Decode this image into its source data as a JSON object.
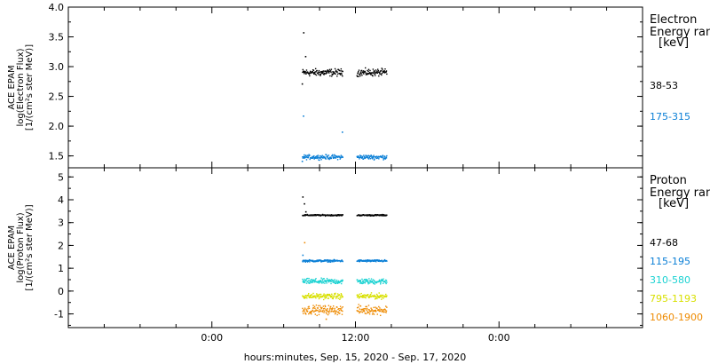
{
  "chart_data": {
    "type": "scatter",
    "x_axis": {
      "label": "hours:minutes, Sep. 15, 2020 - Sep. 17, 2020",
      "range_hours": [
        -12,
        36
      ],
      "ticks": [
        {
          "hour": 0,
          "label": "0:00"
        },
        {
          "hour": 12,
          "label": "12:00"
        },
        {
          "hour": 24,
          "label": "0:00"
        }
      ]
    },
    "panels": [
      {
        "id": "electron",
        "ylabel": [
          "ACE EPAM",
          "log(Electron Flux)",
          "[1/(cm²s ster MeV)]"
        ],
        "ylim": [
          1.3,
          4.0
        ],
        "yticks": [
          "1.5",
          "2.0",
          "2.5",
          "3.0",
          "3.5",
          "4.0"
        ],
        "legend_title": [
          "Electron",
          "Energy range",
          "[keV]"
        ],
        "gaps_hours": [
          [
            -12,
            7.5
          ],
          [
            10.9,
            12.0
          ],
          [
            14.6,
            36
          ]
        ],
        "series": [
          {
            "name": "38-53",
            "color": "#000000",
            "level": 2.91,
            "scatter": 0.04,
            "spikes": [
              {
                "hour": 7.5,
                "value": 2.72
              },
              {
                "hour": 7.62,
                "value": 3.58
              },
              {
                "hour": 7.78,
                "value": 3.18
              }
            ]
          },
          {
            "name": "175-315",
            "color": "#0a7fd6",
            "level": 1.49,
            "scatter": 0.025,
            "spikes": [
              {
                "hour": 7.5,
                "value": 1.42
              },
              {
                "hour": 7.6,
                "value": 2.18
              },
              {
                "hour": 10.85,
                "value": 1.91
              }
            ]
          }
        ]
      },
      {
        "id": "proton",
        "ylabel": [
          "ACE EPAM",
          "log(Proton Flux)",
          "[1/(cm²s ster MeV)]"
        ],
        "ylim": [
          -1.6,
          5.4
        ],
        "yticks": [
          "-1",
          "0",
          "1",
          "2",
          "3",
          "4",
          "5"
        ],
        "legend_title": [
          "Proton",
          "Energy range",
          "[keV]"
        ],
        "gaps_hours": [
          [
            -12,
            7.5
          ],
          [
            10.9,
            12.0
          ],
          [
            14.6,
            36
          ]
        ],
        "series": [
          {
            "name": "47-68",
            "color": "#000000",
            "level": 3.35,
            "scatter": 0.02,
            "spikes": [
              {
                "hour": 7.55,
                "value": 4.15
              },
              {
                "hour": 7.68,
                "value": 3.85
              },
              {
                "hour": 7.8,
                "value": 3.5
              }
            ]
          },
          {
            "name": "115-195",
            "color": "#0a7fd6",
            "level": 1.35,
            "scatter": 0.03,
            "spikes": [
              {
                "hour": 7.55,
                "value": 1.6
              }
            ]
          },
          {
            "name": "310-580",
            "color": "#1ad2d2",
            "level": 0.45,
            "scatter": 0.08,
            "spikes": []
          },
          {
            "name": "795-1193",
            "color": "#d8e000",
            "level": -0.2,
            "scatter": 0.08,
            "spikes": []
          },
          {
            "name": "1060-1900",
            "color": "#ee8a00",
            "level": -0.8,
            "scatter": 0.13,
            "spikes": [
              {
                "hour": 7.7,
                "value": 2.15
              },
              {
                "hour": 9.5,
                "value": -1.2
              }
            ]
          }
        ]
      }
    ]
  }
}
